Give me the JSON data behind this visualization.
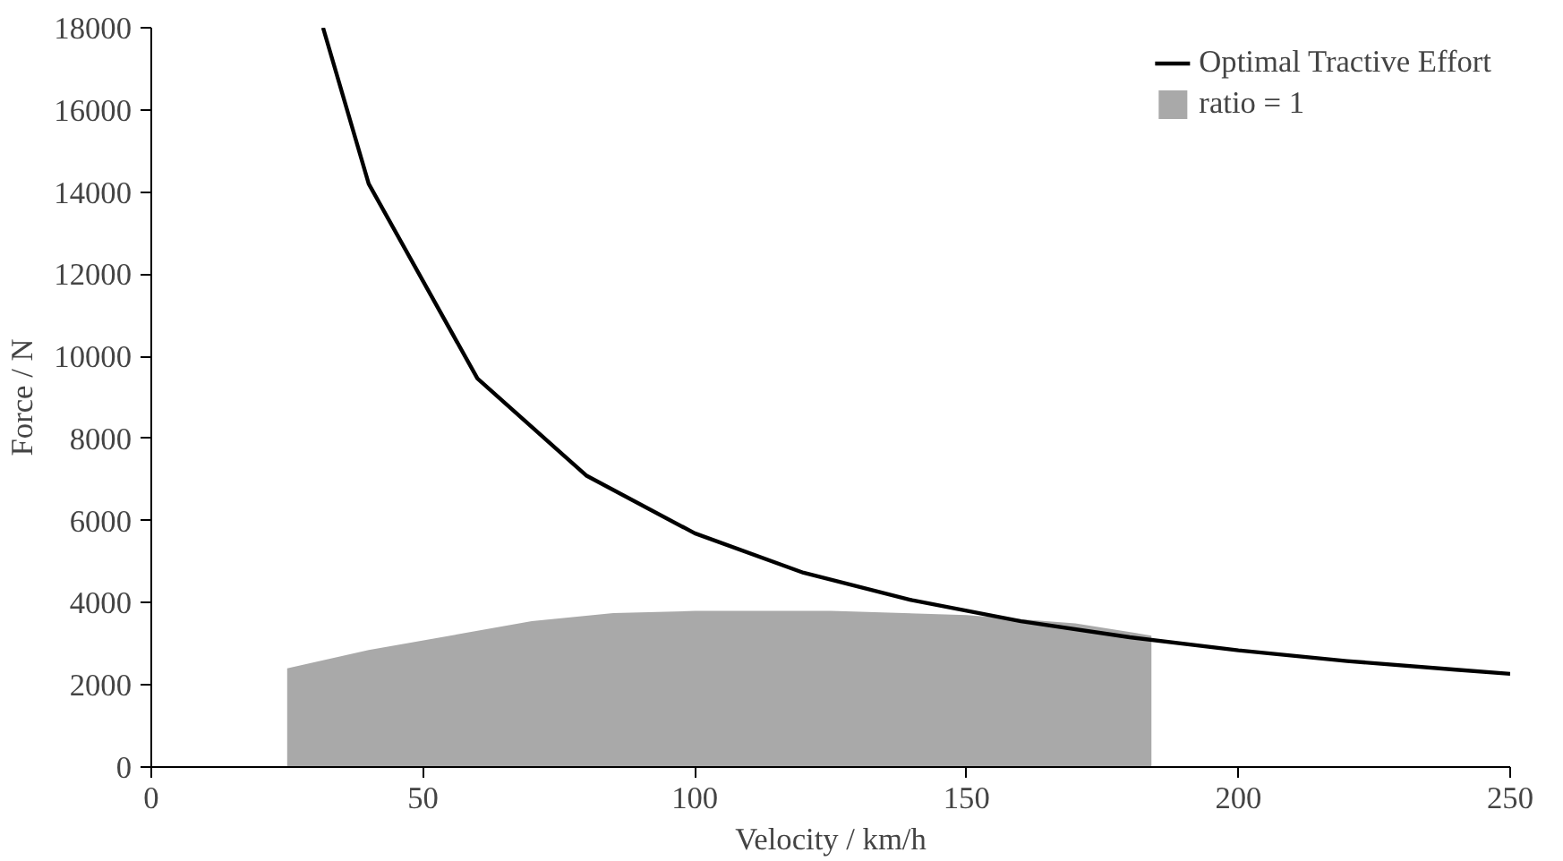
{
  "chart_data": {
    "type": "line",
    "xlabel": "Velocity / km/h",
    "ylabel": "Force / N",
    "series": [
      {
        "name": "Optimal Tractive Effort",
        "color": "#000000",
        "x": [
          31.6,
          40,
          60,
          80,
          100,
          120,
          140,
          160,
          180,
          200,
          220,
          240,
          250
        ],
        "values": [
          18000,
          14200,
          9460,
          7100,
          5690,
          4730,
          4060,
          3550,
          3160,
          2840,
          2580,
          2370,
          2270
        ]
      },
      {
        "name": "ratio = 1",
        "color": "#a9a9a9",
        "type": "area",
        "x": [
          25,
          25,
          40,
          55,
          70,
          85,
          100,
          125,
          150,
          170,
          184,
          184
        ],
        "values": [
          0,
          2400,
          2850,
          3200,
          3550,
          3750,
          3800,
          3800,
          3700,
          3500,
          3200,
          0
        ]
      }
    ],
    "xlim": [
      0,
      250
    ],
    "ylim": [
      0,
      18000
    ],
    "xticks": [
      0,
      50,
      100,
      150,
      200,
      250
    ],
    "yticks": [
      0,
      2000,
      4000,
      6000,
      8000,
      10000,
      12000,
      14000,
      16000,
      18000
    ],
    "grid": false,
    "legend": "top right",
    "line_style": "solid",
    "marker": "none"
  }
}
